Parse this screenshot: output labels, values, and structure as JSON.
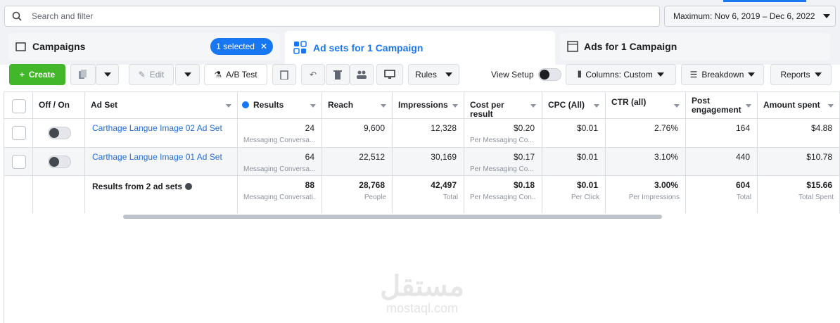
{
  "search": {
    "placeholder": "Search and filter"
  },
  "date_range": "Maximum: Nov 6, 2019 – Dec 6, 2022",
  "tabs": [
    {
      "label": "Campaigns",
      "badge": "1 selected"
    },
    {
      "label": "Ad sets for 1 Campaign"
    },
    {
      "label": "Ads for 1 Campaign"
    }
  ],
  "toolbar": {
    "create": "Create",
    "edit": "Edit",
    "ab_test": "A/B Test",
    "rules": "Rules",
    "view_setup": "View Setup",
    "columns": "Columns: Custom",
    "breakdown": "Breakdown",
    "reports": "Reports"
  },
  "table": {
    "headers": [
      "Off / On",
      "Ad Set",
      "Results",
      "Reach",
      "Impressions",
      "Cost per result",
      "CPC (All)",
      "CTR (all)",
      "Post engagement",
      "Amount spent"
    ],
    "rows": [
      {
        "name": "Carthage Langue Image 02 Ad Set",
        "cells": [
          {
            "value": "24",
            "sub": "Messaging Conversa..."
          },
          {
            "value": "9,600"
          },
          {
            "value": "12,328"
          },
          {
            "value": "$0.20",
            "sub": "Per Messaging Co..."
          },
          {
            "value": "$0.01"
          },
          {
            "value": "2.76%"
          },
          {
            "value": "164"
          },
          {
            "value": "$4.88"
          }
        ]
      },
      {
        "name": "Carthage Langue Image 01 Ad Set",
        "cells": [
          {
            "value": "64",
            "sub": "Messaging Conversa..."
          },
          {
            "value": "22,512"
          },
          {
            "value": "30,169"
          },
          {
            "value": "$0.17",
            "sub": "Per Messaging Co..."
          },
          {
            "value": "$0.01"
          },
          {
            "value": "3.10%"
          },
          {
            "value": "440"
          },
          {
            "value": "$10.78"
          }
        ]
      }
    ],
    "summary": {
      "label": "Results from 2 ad sets",
      "cells": [
        {
          "value": "88",
          "sub": "Messaging Conversati..."
        },
        {
          "value": "28,768",
          "sub": "People"
        },
        {
          "value": "42,497",
          "sub": "Total"
        },
        {
          "value": "$0.18",
          "sub": "Per Messaging Con..."
        },
        {
          "value": "$0.01",
          "sub": "Per Click"
        },
        {
          "value": "3.00%",
          "sub": "Per Impressions"
        },
        {
          "value": "604",
          "sub": "Total"
        },
        {
          "value": "$15.66",
          "sub": "Total Spent"
        }
      ]
    }
  },
  "watermark": {
    "arabic": "مستقل",
    "latin": "mostaql.com"
  }
}
